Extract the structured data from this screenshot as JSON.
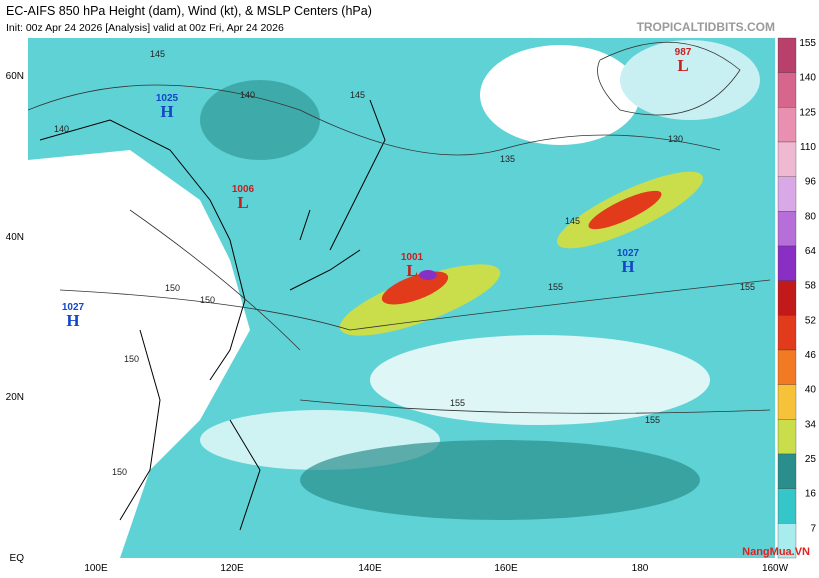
{
  "header": {
    "title": "EC-AIFS 850 hPa Height (dam), Wind (kt), & MSLP Centers (hPa)",
    "subtitle": "Init: 00z Apr 24 2026   [Analysis]   valid at 00z Fri, Apr 24 2026",
    "source": "TROPICALTIDBITS.COM"
  },
  "latitude_labels": [
    "60N",
    "40N",
    "20N",
    "EQ"
  ],
  "longitude_labels": [
    "100E",
    "120E",
    "140E",
    "160E",
    "180",
    "160W"
  ],
  "pressure_centers": [
    {
      "value": "1025",
      "letter": "H"
    },
    {
      "value": "1006",
      "letter": "L"
    },
    {
      "value": "1027",
      "letter": "H"
    },
    {
      "value": "1001",
      "letter": "L"
    },
    {
      "value": "987",
      "letter": "L"
    },
    {
      "value": "1027",
      "letter": "H"
    }
  ],
  "contour_labels": [
    "145",
    "140",
    "140",
    "145",
    "135",
    "130",
    "145",
    "150",
    "150",
    "150",
    "155",
    "155",
    "155",
    "155",
    "150"
  ],
  "colorbar": {
    "ticks": [
      "155",
      "140",
      "125",
      "110",
      "96",
      "80",
      "64",
      "58",
      "52",
      "46",
      "40",
      "34",
      "25",
      "16",
      "7"
    ],
    "colors": [
      "#b8406a",
      "#d6668c",
      "#e98fb0",
      "#f0b9d2",
      "#d9a8e6",
      "#b66fd9",
      "#8a2fc4",
      "#c21a1a",
      "#e23b1c",
      "#f27a22",
      "#f6c23a",
      "#c9de4a",
      "#2a8f8c",
      "#35c6c9",
      "#a9ecee"
    ]
  },
  "watermark": "NangMua.VN"
}
